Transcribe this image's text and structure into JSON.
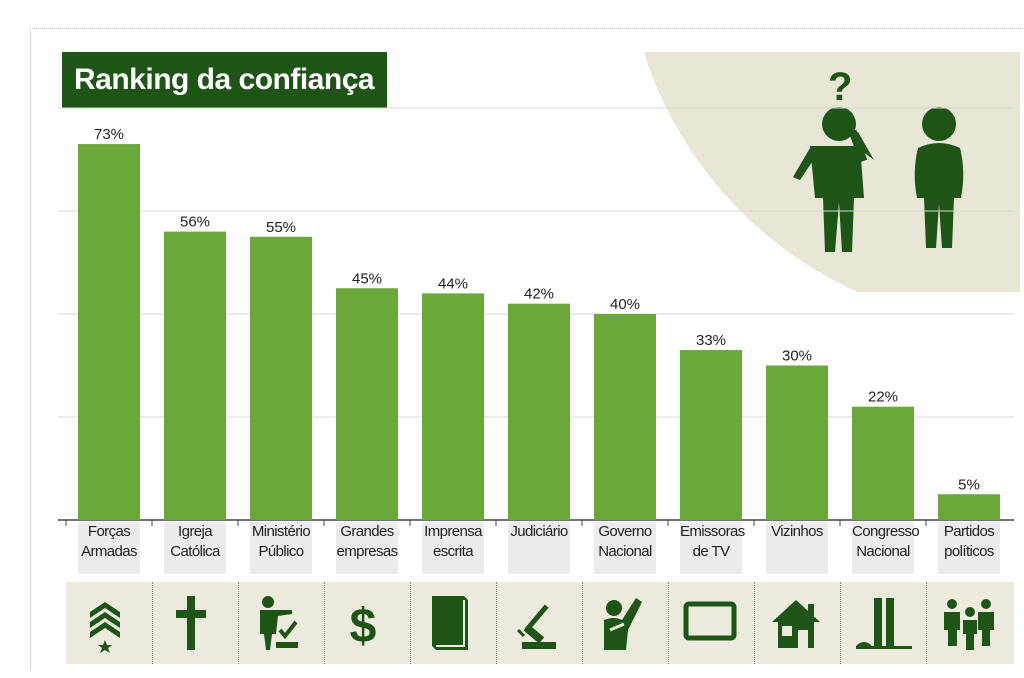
{
  "title": "Ranking da confiança",
  "chart_data": {
    "type": "bar",
    "title": "Ranking da confiança",
    "categories": [
      "Forças Armadas",
      "Igreja Católica",
      "Ministério Público",
      "Grandes empresas",
      "Imprensa escrita",
      "Judiciário",
      "Governo Nacional",
      "Emissoras de TV",
      "Vizinhos",
      "Congresso Nacional",
      "Partidos políticos"
    ],
    "category_lines": [
      [
        "Forças",
        "Armadas"
      ],
      [
        "Igreja",
        "Católica"
      ],
      [
        "Ministério",
        "Público"
      ],
      [
        "Grandes",
        "empresas"
      ],
      [
        "Imprensa",
        "escrita"
      ],
      [
        "Judiciário",
        ""
      ],
      [
        "Governo",
        "Nacional"
      ],
      [
        "Emissoras",
        "de TV"
      ],
      [
        "Vizinhos",
        ""
      ],
      [
        "Congresso",
        "Nacional"
      ],
      [
        "Partidos",
        "políticos"
      ]
    ],
    "values": [
      73,
      56,
      55,
      45,
      44,
      42,
      40,
      33,
      30,
      22,
      5
    ],
    "value_labels": [
      "73%",
      "56%",
      "55%",
      "45%",
      "44%",
      "42%",
      "40%",
      "33%",
      "30%",
      "22%",
      "5%"
    ],
    "ylim": [
      0,
      80
    ],
    "unit": "%",
    "grid": true
  },
  "icons": [
    "chevron-rank-icon",
    "cross-icon",
    "voting-person-icon",
    "dollar-icon",
    "book-icon",
    "gavel-icon",
    "raised-hand-icon",
    "tv-icon",
    "house-icon",
    "congress-icon",
    "people-group-icon"
  ],
  "colors": {
    "bar": "#6aa83a",
    "title_bg": "#1e5416",
    "icon": "#1e5416",
    "icon_band": "#ecebdd",
    "accent_bg": "#e8e6d5",
    "grid": "#d8d8d8"
  }
}
